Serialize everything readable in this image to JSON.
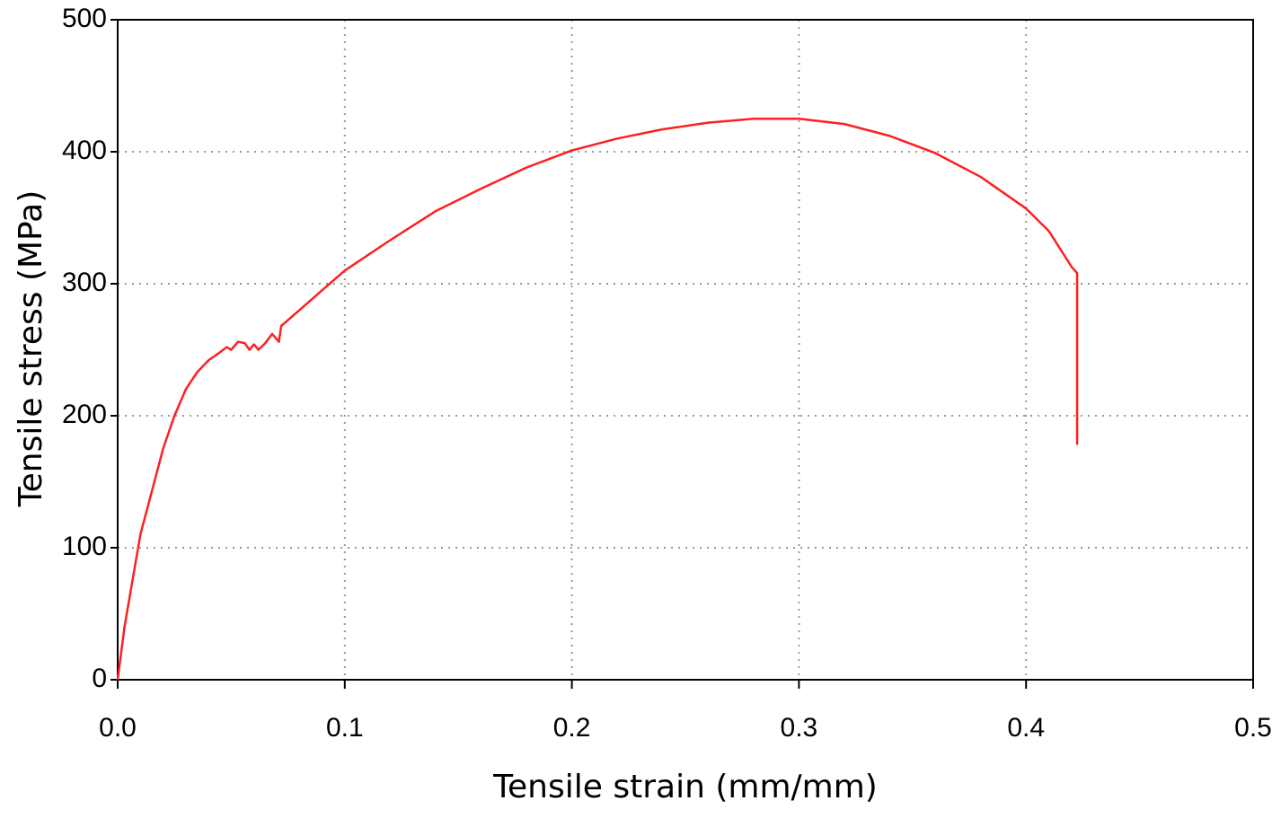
{
  "chart_data": {
    "type": "line",
    "x_label": "Tensile strain (mm/mm)",
    "y_label": "Tensile stress (MPa)",
    "xlim": [
      0,
      0.5
    ],
    "ylim": [
      0,
      500
    ],
    "xticks": [
      {
        "value": 0,
        "label": "0.0"
      },
      0.1,
      0.2,
      0.3,
      0.4,
      0.5
    ],
    "yticks": [
      0,
      100,
      200,
      300,
      400,
      500
    ],
    "grid": true,
    "x": [
      0,
      0.003,
      0.01,
      0.02,
      0.025,
      0.03,
      0.035,
      0.04,
      0.045,
      0.048,
      0.05,
      0.053,
      0.056,
      0.058,
      0.06,
      0.062,
      0.065,
      0.068,
      0.07,
      0.071,
      0.072,
      0.08,
      0.09,
      0.1,
      0.12,
      0.14,
      0.16,
      0.18,
      0.2,
      0.22,
      0.24,
      0.26,
      0.28,
      0.3,
      0.32,
      0.34,
      0.36,
      0.38,
      0.4,
      0.41,
      0.42,
      0.4225,
      0.4225
    ],
    "series": [
      {
        "color": "#ff1f1f",
        "values": [
          0,
          40,
          110,
          175,
          200,
          220,
          233,
          242,
          248,
          252,
          250,
          256,
          255,
          250,
          254,
          250,
          255,
          262,
          258,
          256,
          268,
          280,
          295,
          310,
          333,
          355,
          372,
          388,
          401,
          410,
          417,
          422,
          425,
          425,
          421,
          412,
          399,
          381,
          357,
          340,
          313,
          308,
          178
        ]
      }
    ]
  }
}
